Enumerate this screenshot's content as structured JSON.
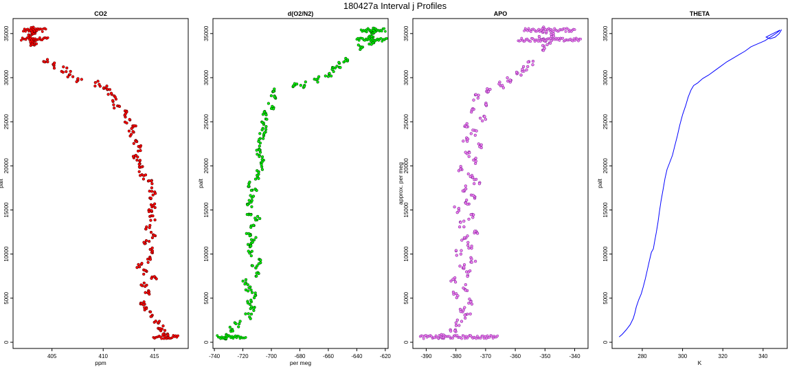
{
  "figure_title": "180427a   Interval j Profiles",
  "chart_data": [
    {
      "type": "scatter",
      "title": "CO2",
      "xlabel": "ppm",
      "ylabel": "palt",
      "xlim": [
        401.2,
        418.3
      ],
      "ylim": [
        -700,
        36700
      ],
      "xticks": [
        405,
        410,
        415
      ],
      "yticks": [
        0,
        5000,
        10000,
        15000,
        20000,
        25000,
        30000,
        35000
      ],
      "color": "#ff0000",
      "edge_color": "#400000",
      "points": [
        [
          416.2,
          600
        ],
        [
          415.8,
          1100
        ],
        [
          415.6,
          1600
        ],
        [
          415.2,
          2400
        ],
        [
          414.6,
          3200
        ],
        [
          414.1,
          4000
        ],
        [
          413.8,
          4600
        ],
        [
          414.4,
          5600
        ],
        [
          414.0,
          6400
        ],
        [
          414.9,
          7200
        ],
        [
          414.2,
          7900
        ],
        [
          413.6,
          8600
        ],
        [
          414.5,
          9400
        ],
        [
          414.7,
          10400
        ],
        [
          414.2,
          11300
        ],
        [
          414.9,
          12200
        ],
        [
          414.4,
          13100
        ],
        [
          414.8,
          14000
        ],
        [
          414.6,
          14800
        ],
        [
          414.9,
          15600
        ],
        [
          414.6,
          16400
        ],
        [
          414.8,
          17200
        ],
        [
          414.6,
          18000
        ],
        [
          413.9,
          18800
        ],
        [
          413.7,
          19600
        ],
        [
          413.4,
          20400
        ],
        [
          413.2,
          21200
        ],
        [
          413.6,
          22000
        ],
        [
          413.1,
          22800
        ],
        [
          412.8,
          23600
        ],
        [
          412.9,
          24400
        ],
        [
          412.4,
          25200
        ],
        [
          412.0,
          26000
        ],
        [
          411.3,
          26800
        ],
        [
          411.0,
          27600
        ],
        [
          410.7,
          28400
        ],
        [
          410.3,
          29000
        ],
        [
          409.5,
          29300
        ],
        [
          407.7,
          29700
        ],
        [
          406.8,
          30400
        ],
        [
          406.2,
          30900
        ],
        [
          405.2,
          31400
        ],
        [
          404.4,
          31800
        ],
        [
          403.0,
          33700
        ],
        [
          403.2,
          34100
        ],
        [
          403.1,
          34400
        ],
        [
          402.9,
          34900
        ],
        [
          403.2,
          35300
        ],
        [
          403.0,
          35500
        ]
      ],
      "bands": [
        {
          "y": 600,
          "x_from": 414.9,
          "x_to": 417.3
        },
        {
          "y": 34400,
          "x_from": 402.0,
          "x_to": 404.6
        },
        {
          "y": 35400,
          "x_from": 402.2,
          "x_to": 404.4
        }
      ]
    },
    {
      "type": "scatter",
      "title": "d(O2/N2)",
      "xlabel": "per meg",
      "ylabel": "palt",
      "xlim": [
        -741,
        -618
      ],
      "ylim": [
        -700,
        36700
      ],
      "xticks": [
        -740,
        -720,
        -700,
        -680,
        -660,
        -640,
        -620
      ],
      "yticks": [
        0,
        5000,
        10000,
        15000,
        20000,
        25000,
        30000,
        35000
      ],
      "color": "#00ee00",
      "edge_color": "#003300",
      "points": [
        [
          -731,
          600
        ],
        [
          -728,
          1400
        ],
        [
          -724,
          2100
        ],
        [
          -716,
          2900
        ],
        [
          -713,
          3700
        ],
        [
          -716,
          4500
        ],
        [
          -712,
          5300
        ],
        [
          -716,
          6100
        ],
        [
          -718,
          6800
        ],
        [
          -710,
          7600
        ],
        [
          -712,
          8400
        ],
        [
          -707,
          9200
        ],
        [
          -714,
          10000
        ],
        [
          -716,
          10800
        ],
        [
          -712,
          11600
        ],
        [
          -716,
          12400
        ],
        [
          -713,
          13200
        ],
        [
          -710,
          14000
        ],
        [
          -716,
          14800
        ],
        [
          -715,
          15600
        ],
        [
          -714,
          16400
        ],
        [
          -712,
          17200
        ],
        [
          -714,
          18000
        ],
        [
          -710,
          18800
        ],
        [
          -708,
          19600
        ],
        [
          -706,
          20400
        ],
        [
          -708,
          21200
        ],
        [
          -709,
          22000
        ],
        [
          -707,
          22800
        ],
        [
          -706,
          23600
        ],
        [
          -705,
          24400
        ],
        [
          -705,
          25200
        ],
        [
          -704,
          26000
        ],
        [
          -700,
          26800
        ],
        [
          -699,
          27600
        ],
        [
          -697,
          28400
        ],
        [
          -684,
          29000
        ],
        [
          -678,
          29200
        ],
        [
          -668,
          29800
        ],
        [
          -660,
          30400
        ],
        [
          -657,
          31000
        ],
        [
          -652,
          31500
        ],
        [
          -648,
          31900
        ],
        [
          -637,
          33400
        ],
        [
          -630,
          33900
        ],
        [
          -629,
          34400
        ],
        [
          -631,
          34900
        ],
        [
          -628,
          35300
        ],
        [
          -629,
          35500
        ]
      ],
      "bands": [
        {
          "y": 600,
          "x_from": -738,
          "x_to": -718
        },
        {
          "y": 34300,
          "x_from": -640,
          "x_to": -619
        },
        {
          "y": 35400,
          "x_from": -637,
          "x_to": -620
        }
      ]
    },
    {
      "type": "scatter",
      "title": "APO",
      "xlabel": "",
      "ylabel": "approx. per meg",
      "xlim": [
        -394.5,
        -335.5
      ],
      "ylim": [
        -700,
        36700
      ],
      "xticks": [
        -390,
        -380,
        -370,
        -360,
        -350,
        -340
      ],
      "yticks": [
        0,
        5000,
        10000,
        15000,
        20000,
        25000,
        30000,
        35000
      ],
      "color": "#ee82ee",
      "edge_color": "#6a0a8a",
      "points": [
        [
          -385,
          600
        ],
        [
          -381,
          1400
        ],
        [
          -379,
          2200
        ],
        [
          -376,
          3000
        ],
        [
          -378,
          3800
        ],
        [
          -375,
          4600
        ],
        [
          -380,
          5400
        ],
        [
          -377,
          6200
        ],
        [
          -381,
          7000
        ],
        [
          -376,
          7800
        ],
        [
          -378,
          8600
        ],
        [
          -374,
          9400
        ],
        [
          -379,
          10200
        ],
        [
          -375,
          11000
        ],
        [
          -377,
          11800
        ],
        [
          -373,
          12600
        ],
        [
          -378,
          13400
        ],
        [
          -375,
          14200
        ],
        [
          -380,
          15000
        ],
        [
          -376,
          15800
        ],
        [
          -374,
          16600
        ],
        [
          -377,
          17400
        ],
        [
          -373,
          18200
        ],
        [
          -375,
          19000
        ],
        [
          -379,
          19800
        ],
        [
          -374,
          20600
        ],
        [
          -376,
          21400
        ],
        [
          -372,
          22200
        ],
        [
          -377,
          23000
        ],
        [
          -374,
          23800
        ],
        [
          -376,
          24600
        ],
        [
          -371,
          25400
        ],
        [
          -375,
          26200
        ],
        [
          -370,
          27000
        ],
        [
          -373,
          27800
        ],
        [
          -369,
          28600
        ],
        [
          -365,
          29200
        ],
        [
          -362,
          29800
        ],
        [
          -359,
          30400
        ],
        [
          -357,
          31000
        ],
        [
          -355,
          31600
        ],
        [
          -350,
          33400
        ],
        [
          -349,
          34000
        ],
        [
          -351,
          34500
        ],
        [
          -348,
          35000
        ],
        [
          -350,
          35400
        ]
      ],
      "bands": [
        {
          "y": 600,
          "x_from": -392,
          "x_to": -366
        },
        {
          "y": 34300,
          "x_from": -359,
          "x_to": -338
        },
        {
          "y": 35400,
          "x_from": -357,
          "x_to": -340
        }
      ]
    },
    {
      "type": "line",
      "title": "THETA",
      "xlabel": "K",
      "ylabel": "palt",
      "xlim": [
        265,
        352
      ],
      "ylim": [
        -700,
        36700
      ],
      "xticks": [
        280,
        300,
        320,
        340
      ],
      "yticks": [
        0,
        5000,
        10000,
        15000,
        20000,
        25000,
        30000,
        35000
      ],
      "color": "#0000ff",
      "points": [
        [
          268.5,
          600
        ],
        [
          270,
          900
        ],
        [
          272,
          1400
        ],
        [
          274,
          2000
        ],
        [
          275.5,
          2700
        ],
        [
          276.3,
          3300
        ],
        [
          277,
          4000
        ],
        [
          278.2,
          4800
        ],
        [
          279.5,
          5500
        ],
        [
          280.5,
          6300
        ],
        [
          281.5,
          7200
        ],
        [
          282.5,
          8200
        ],
        [
          283.5,
          9200
        ],
        [
          284.5,
          10200
        ],
        [
          285.5,
          10600
        ],
        [
          286.2,
          11500
        ],
        [
          287,
          12500
        ],
        [
          287.8,
          13600
        ],
        [
          288.5,
          14800
        ],
        [
          289.3,
          16000
        ],
        [
          290.3,
          17300
        ],
        [
          291.3,
          18600
        ],
        [
          292.3,
          19600
        ],
        [
          293.5,
          20300
        ],
        [
          295,
          21200
        ],
        [
          296.2,
          22300
        ],
        [
          297.4,
          23400
        ],
        [
          298.6,
          24600
        ],
        [
          300,
          25800
        ],
        [
          301.5,
          26800
        ],
        [
          302.8,
          27800
        ],
        [
          304.2,
          28600
        ],
        [
          305.5,
          29100
        ],
        [
          307.5,
          29400
        ],
        [
          310,
          29900
        ],
        [
          313,
          30300
        ],
        [
          316,
          30800
        ],
        [
          319,
          31300
        ],
        [
          322,
          31800
        ],
        [
          325,
          32200
        ],
        [
          328,
          32600
        ],
        [
          331,
          33000
        ],
        [
          334,
          33500
        ],
        [
          337,
          33800
        ],
        [
          339,
          34000
        ],
        [
          341,
          34200
        ],
        [
          343,
          34500
        ],
        [
          345,
          34800
        ],
        [
          347,
          35100
        ],
        [
          348.5,
          35400
        ],
        [
          344,
          34900
        ],
        [
          341.5,
          34600
        ],
        [
          343.5,
          34400
        ],
        [
          346,
          34600
        ],
        [
          348,
          35000
        ],
        [
          349.2,
          35450
        ]
      ],
      "bands": []
    }
  ]
}
